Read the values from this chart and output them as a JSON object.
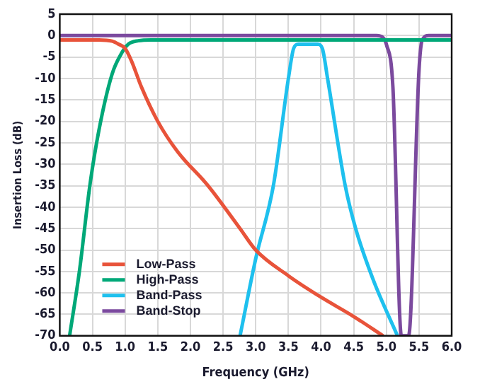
{
  "chart_data": {
    "type": "line",
    "xlabel": "Frequency (GHz)",
    "ylabel": "Insertion Loss (dB)",
    "xlim": [
      0,
      6
    ],
    "ylim": [
      -70,
      5
    ],
    "xticks": [
      {
        "value": 0,
        "label": "0.0"
      },
      0.5,
      {
        "value": 1,
        "label": "1.0"
      },
      1.5,
      {
        "value": 2,
        "label": "2.0"
      },
      2.5,
      {
        "value": 3,
        "label": "3.0"
      },
      3.5,
      {
        "value": 4,
        "label": "4.0"
      },
      4.5,
      {
        "value": 5,
        "label": "5.0"
      },
      5.5,
      {
        "value": 6,
        "label": "6.0"
      }
    ],
    "yticks": [
      5,
      0,
      -5,
      -10,
      -15,
      -20,
      -25,
      -30,
      -35,
      -40,
      -45,
      -50,
      -55,
      -60,
      -65,
      -70
    ],
    "grid": true,
    "legend": "bottom left",
    "marker": "none",
    "line_style": "solid",
    "series": [
      {
        "name": "Low-Pass",
        "color": "#e8533a",
        "x": [
          0,
          0.6,
          0.8,
          0.9,
          1.0,
          1.1,
          1.25,
          1.5,
          1.8,
          2.27,
          2.76,
          3.0,
          3.5,
          4.0,
          4.5,
          4.95
        ],
        "values": [
          -1,
          -1,
          -1.3,
          -2,
          -3,
          -6,
          -12,
          -20,
          -27,
          -35,
          -45,
          -50,
          -56,
          -61,
          -65.5,
          -70
        ]
      },
      {
        "name": "High-Pass",
        "color": "#00a878",
        "x": [
          0.15,
          0.3,
          0.46,
          0.6,
          0.8,
          0.95,
          1.05,
          1.2,
          1.4,
          6
        ],
        "values": [
          -70,
          -55,
          -35,
          -22,
          -9,
          -4,
          -2,
          -1.2,
          -1,
          -1
        ]
      },
      {
        "name": "Band-Pass",
        "color": "#1ec0ee",
        "x": [
          2.76,
          3.0,
          3.27,
          3.5,
          3.58,
          3.65,
          3.95,
          4.02,
          4.1,
          4.37,
          4.53,
          4.8,
          5.17
        ],
        "values": [
          -70,
          -52,
          -35,
          -10,
          -3,
          -2,
          -2,
          -3,
          -10,
          -35,
          -45,
          -57,
          -70
        ]
      },
      {
        "name": "Band-Stop",
        "color": "#7b4a9e",
        "x": [
          0,
          4.85,
          4.95,
          5.0,
          5.1,
          5.23,
          5.34,
          5.5,
          5.55,
          5.65,
          6
        ],
        "values": [
          0,
          0,
          -0.5,
          -2,
          -12,
          -70,
          -70,
          -8,
          -1,
          0,
          0
        ]
      }
    ]
  }
}
